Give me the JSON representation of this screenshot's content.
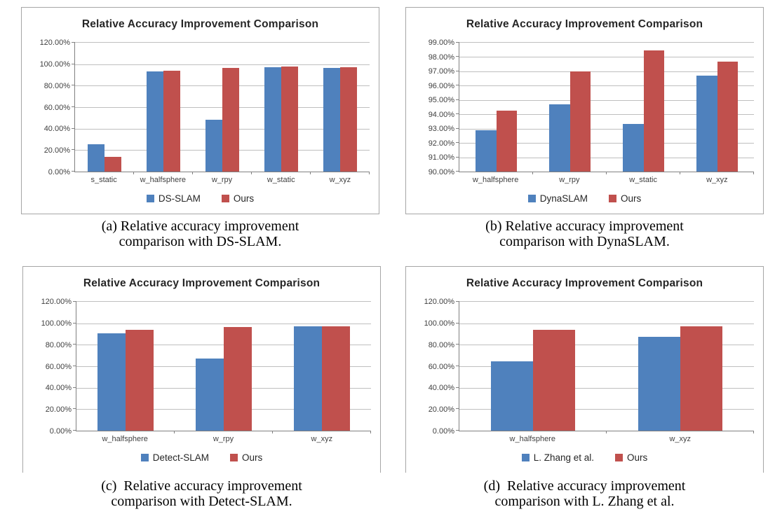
{
  "figure": {
    "background": "#ffffff"
  },
  "colors": {
    "series_blue": "#4f81bd",
    "series_red": "#c0504d",
    "gridline": "#bfbfbf",
    "axis": "#808080",
    "box_border": "#a6a6a6"
  },
  "chart_data": [
    {
      "type": "bar",
      "title": "Relative Accuracy Improvement Comparison",
      "categories": [
        "s_static",
        "w_halfsphere",
        "w_rpy",
        "w_static",
        "w_xyz"
      ],
      "series": [
        {
          "name": "DS-SLAM",
          "color": "#4f81bd",
          "values": [
            25.5,
            93.5,
            48.5,
            97.5,
            96.5
          ]
        },
        {
          "name": "Ours",
          "color": "#c0504d",
          "values": [
            14.0,
            94.0,
            96.5,
            98.0,
            97.5
          ]
        }
      ],
      "ylabel": "",
      "xlabel": "",
      "ylim": [
        0,
        120
      ],
      "ystep": 20,
      "tick_suffix": "%",
      "tick_decimals": 2,
      "grid": true,
      "legend_position": "bottom",
      "caption_lines": [
        "(a) Relative accuracy improvement",
        "comparison with DS-SLAM."
      ]
    },
    {
      "type": "bar",
      "title": "Relative Accuracy Improvement Comparison",
      "categories": [
        "w_halfsphere",
        "w_rpy",
        "w_static",
        "w_xyz"
      ],
      "series": [
        {
          "name": "DynaSLAM",
          "color": "#4f81bd",
          "values": [
            92.9,
            94.7,
            93.35,
            96.7
          ]
        },
        {
          "name": "Ours",
          "color": "#c0504d",
          "values": [
            94.25,
            97.0,
            98.45,
            97.7
          ]
        }
      ],
      "ylabel": "",
      "xlabel": "",
      "ylim": [
        90,
        99
      ],
      "ystep": 1,
      "tick_suffix": "%",
      "tick_decimals": 2,
      "grid": true,
      "legend_position": "bottom",
      "caption_lines": [
        "(b) Relative accuracy improvement",
        "comparison with DynaSLAM."
      ]
    },
    {
      "type": "bar",
      "title": "Relative Accuracy Improvement Comparison",
      "categories": [
        "w_halfsphere",
        "w_rpy",
        "w_xyz"
      ],
      "series": [
        {
          "name": "Detect-SLAM",
          "color": "#4f81bd",
          "values": [
            90.5,
            67.0,
            97.5
          ]
        },
        {
          "name": "Ours",
          "color": "#c0504d",
          "values": [
            94.0,
            96.5,
            97.5
          ]
        }
      ],
      "ylabel": "",
      "xlabel": "",
      "ylim": [
        0,
        120
      ],
      "ystep": 20,
      "tick_suffix": "%",
      "tick_decimals": 2,
      "grid": true,
      "legend_position": "bottom",
      "caption_lines": [
        "(c)  Relative accuracy improvement",
        "comparison with Detect-SLAM."
      ]
    },
    {
      "type": "bar",
      "title": "Relative Accuracy Improvement Comparison",
      "categories": [
        "w_halfsphere",
        "w_xyz"
      ],
      "series": [
        {
          "name": "L. Zhang et al.",
          "color": "#4f81bd",
          "values": [
            64.5,
            87.5
          ]
        },
        {
          "name": "Ours",
          "color": "#c0504d",
          "values": [
            94.0,
            97.5
          ]
        }
      ],
      "ylabel": "",
      "xlabel": "",
      "ylim": [
        0,
        120
      ],
      "ystep": 20,
      "tick_suffix": "%",
      "tick_decimals": 2,
      "grid": true,
      "legend_position": "bottom",
      "caption_lines": [
        "(d)  Relative accuracy improvement",
        "comparison with L. Zhang et al."
      ]
    }
  ]
}
